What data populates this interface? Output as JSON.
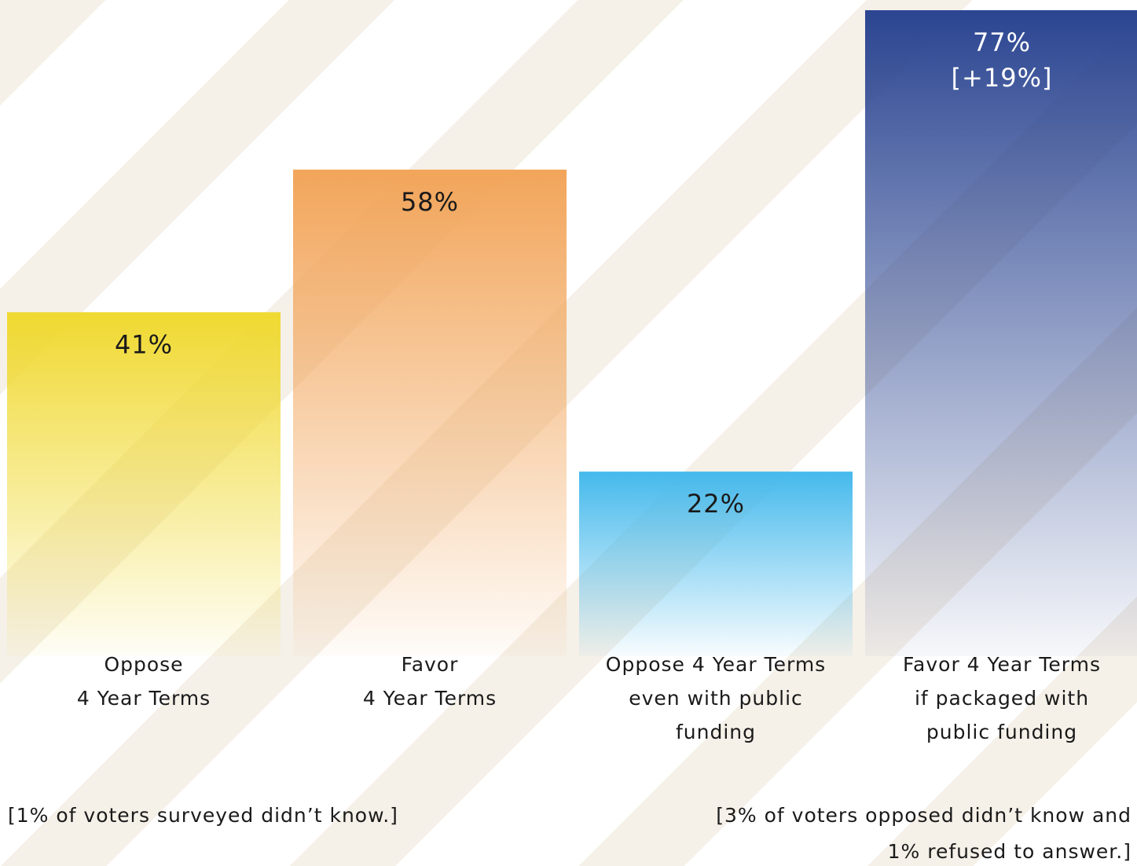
{
  "chart_data": {
    "type": "bar",
    "categories": [
      [
        "Oppose",
        "4 Year Terms"
      ],
      [
        "Favor",
        "4 Year Terms"
      ],
      [
        "Oppose 4 Year Terms",
        "even with public",
        "funding"
      ],
      [
        "Favor 4 Year Terms",
        "if packaged with",
        "public funding"
      ]
    ],
    "values": [
      41,
      58,
      22,
      77
    ],
    "value_labels": [
      "41%",
      "58%",
      "22%",
      "77%"
    ],
    "colors": [
      "#f0d930",
      "#f2a55a",
      "#45b9ec",
      "#2b4591"
    ],
    "annotations": [
      null,
      null,
      null,
      "[+19%]"
    ],
    "footnotes": [
      [
        "[1% of voters surveyed didn’t know.]"
      ],
      [
        "[3% of voters opposed didn’t know and",
        "1% refused to answer.]"
      ]
    ]
  }
}
